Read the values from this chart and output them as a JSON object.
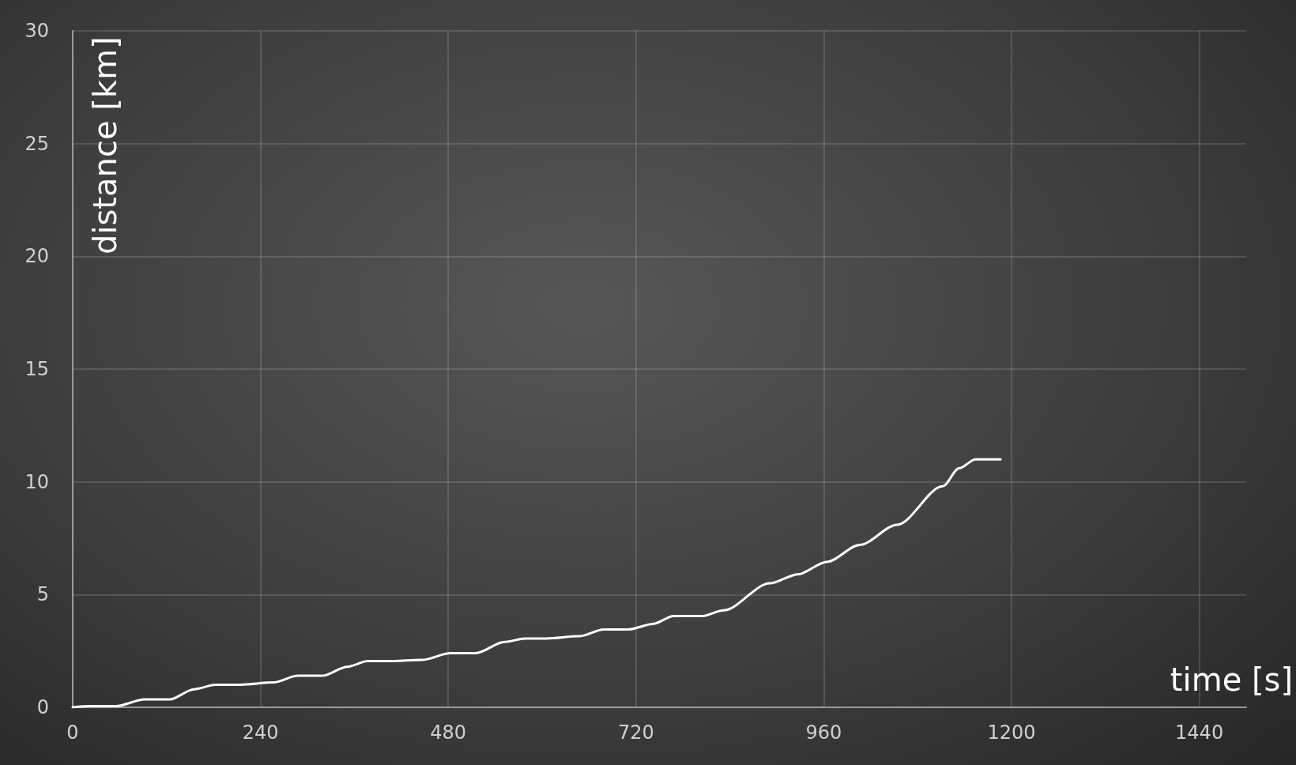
{
  "chart_data": {
    "type": "line",
    "xlabel": "time [s]",
    "ylabel": "distance [km]",
    "x": [
      0,
      23,
      55,
      92,
      124,
      155,
      182,
      214,
      256,
      288,
      319,
      351,
      377,
      404,
      446,
      483,
      515,
      552,
      578,
      605,
      647,
      679,
      710,
      742,
      768,
      805,
      832,
      891,
      927,
      964,
      1006,
      1054,
      1112,
      1133,
      1154,
      1186
    ],
    "series": [
      {
        "color": "#ffffff",
        "values": [
          0,
          0.05,
          0.05,
          0.35,
          0.35,
          0.8,
          1.0,
          1.0,
          1.1,
          1.4,
          1.4,
          1.8,
          2.05,
          2.05,
          2.1,
          2.4,
          2.4,
          2.9,
          3.05,
          3.05,
          3.15,
          3.45,
          3.45,
          3.7,
          4.05,
          4.05,
          4.3,
          5.5,
          5.9,
          6.45,
          7.2,
          8.1,
          9.8,
          10.6,
          11.0,
          11.0
        ]
      }
    ],
    "xlim": [
      0,
      1500
    ],
    "xticks": [
      0,
      240,
      480,
      720,
      960,
      1200,
      1440
    ],
    "ylim": [
      0,
      30
    ],
    "yticks": [
      0,
      5,
      10,
      15,
      20,
      25,
      30
    ],
    "grid": true,
    "marker": "none",
    "line_style": "solid"
  }
}
